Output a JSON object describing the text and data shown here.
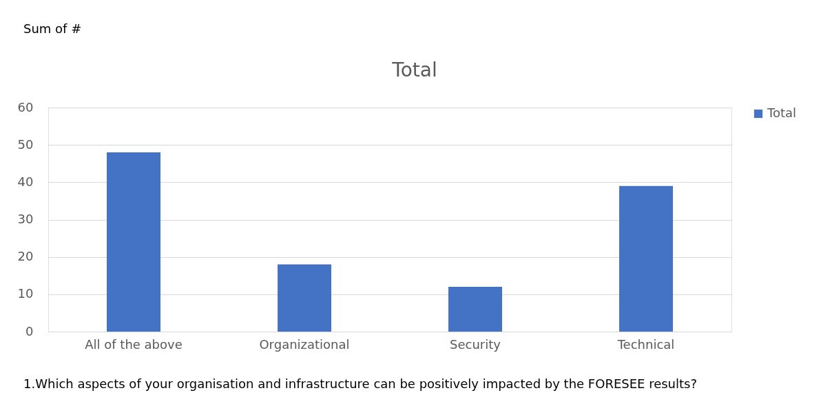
{
  "chart_data": {
    "type": "bar",
    "title": "Total",
    "categories": [
      "All of the above",
      "Organizational",
      "Security",
      "Technical"
    ],
    "series": [
      {
        "name": "Total",
        "color": "#4472c4",
        "values": [
          48,
          18,
          12,
          39
        ]
      }
    ],
    "ylim": [
      0,
      60
    ],
    "yticks": [
      0,
      10,
      20,
      30,
      40,
      50,
      60
    ],
    "grid": "y",
    "legend": "right",
    "annotations": [
      "Sum of #",
      "1.Which aspects of your organisation and infrastructure can be positively impacted by the FORESEE results?"
    ]
  }
}
